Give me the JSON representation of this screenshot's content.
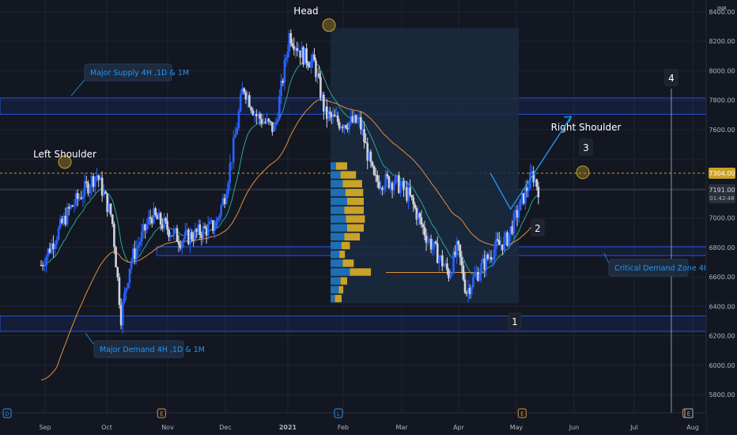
{
  "chart_data": {
    "type": "candlestick",
    "price_axis": {
      "currency": "INR",
      "ticks": [
        8400,
        8200,
        8000,
        7800,
        7600,
        7400,
        7200,
        7000,
        6800,
        6600,
        6400,
        6200,
        6000,
        5800
      ],
      "range": [
        5650,
        8480
      ],
      "current_price": "7304.00",
      "last_price": "7191.00",
      "countdown": "01:42:48"
    },
    "time_axis": {
      "labels": [
        "Sep",
        "Oct",
        "Nov",
        "Dec",
        "2021",
        "Feb",
        "Mar",
        "Apr",
        "May",
        "Jun",
        "Jul",
        "Aug"
      ]
    },
    "event_markers": [
      {
        "label": "D",
        "at_tick": 0
      },
      {
        "label": "E",
        "at_tick": 1.9
      },
      {
        "label": "L",
        "at_tick": 4.65
      },
      {
        "label": "E",
        "at_tick": 8.1
      },
      {
        "label": "E",
        "at_tick": 10.9
      }
    ],
    "zones": [
      {
        "name": "supply",
        "top": 7815,
        "bottom": 7705,
        "label": "Major Supply 4H ,1D & 1M"
      },
      {
        "name": "critical_demand",
        "top": 6805,
        "bottom": 6745,
        "label": "Critical Demand Zone 4H"
      },
      {
        "name": "major_demand",
        "top": 6335,
        "bottom": 6230,
        "label": "Major Demand 4H ,1D & 1M"
      }
    ],
    "annotations": {
      "left_shoulder": "Left Shoulder",
      "head": "Head",
      "right_shoulder": "Right Shoulder",
      "wave_1": "1",
      "wave_2": "2",
      "wave_3": "3",
      "wave_4": "4"
    },
    "projection_path": [
      [
        7.55,
        7304
      ],
      [
        7.9,
        7060
      ],
      [
        8.95,
        7690
      ]
    ],
    "ohlc_samples": [
      {
        "t": 0.0,
        "o": 6700,
        "h": 6760,
        "l": 6620,
        "c": 6680
      },
      {
        "t": 0.4,
        "o": 6980,
        "h": 7140,
        "l": 6930,
        "c": 7080
      },
      {
        "t": 0.9,
        "o": 7200,
        "h": 7380,
        "l": 7150,
        "c": 7300
      },
      {
        "t": 1.2,
        "o": 7000,
        "h": 7110,
        "l": 6500,
        "c": 6600
      },
      {
        "t": 1.3,
        "o": 6450,
        "h": 6480,
        "l": 6260,
        "c": 6310
      },
      {
        "t": 1.8,
        "o": 6950,
        "h": 7080,
        "l": 6880,
        "c": 7040
      },
      {
        "t": 2.3,
        "o": 6820,
        "h": 6940,
        "l": 6760,
        "c": 6880
      },
      {
        "t": 2.9,
        "o": 6880,
        "h": 7020,
        "l": 6830,
        "c": 6950
      },
      {
        "t": 3.35,
        "o": 7850,
        "h": 8000,
        "l": 7790,
        "c": 7920
      },
      {
        "t": 4.1,
        "o": 8230,
        "h": 8320,
        "l": 8120,
        "c": 8260
      },
      {
        "t": 4.5,
        "o": 8200,
        "h": 8300,
        "l": 7950,
        "c": 7990
      },
      {
        "t": 5.0,
        "o": 7550,
        "h": 7780,
        "l": 7500,
        "c": 7720
      },
      {
        "t": 5.6,
        "o": 7500,
        "h": 7620,
        "l": 7180,
        "c": 7230
      },
      {
        "t": 6.2,
        "o": 7260,
        "h": 7380,
        "l": 7090,
        "c": 7150
      },
      {
        "t": 6.9,
        "o": 6580,
        "h": 6720,
        "l": 6480,
        "c": 6640
      },
      {
        "t": 7.3,
        "o": 6920,
        "h": 7020,
        "l": 6860,
        "c": 6970
      },
      {
        "t": 7.5,
        "o": 7240,
        "h": 7340,
        "l": 7180,
        "c": 7304
      }
    ],
    "volume_profile": {
      "price_levels": [
        6450,
        6510,
        6570,
        6630,
        6690,
        6750,
        6810,
        6870,
        6930,
        6990,
        7050,
        7110,
        7170,
        7230,
        7290,
        7350
      ],
      "buy_volume": [
        0.08,
        0.15,
        0.18,
        0.35,
        0.22,
        0.16,
        0.2,
        0.25,
        0.3,
        0.28,
        0.25,
        0.3,
        0.27,
        0.22,
        0.18,
        0.1
      ],
      "sell_volume": [
        0.12,
        0.08,
        0.12,
        0.38,
        0.2,
        0.1,
        0.15,
        0.28,
        0.3,
        0.34,
        0.35,
        0.3,
        0.32,
        0.35,
        0.28,
        0.2
      ],
      "poc_price": 6630
    },
    "colors": {
      "background": "#131722",
      "grid": "#1e2431",
      "bull": "#2962ff",
      "bear": "#d1d4dc",
      "ema_fast": "#26a69a",
      "ema_slow": "#e0913a",
      "zone_line": "#2962ff",
      "annotation_blue": "#2196f3",
      "highlight_circle": "#c9a227",
      "profile_box": "#1b2a3f",
      "profile_buy": "#1f6fb5",
      "profile_sell": "#c9a227",
      "poc_line": "#e0913a",
      "axis_text": "#b2b5be",
      "dashed_price": "#c9a227"
    }
  }
}
